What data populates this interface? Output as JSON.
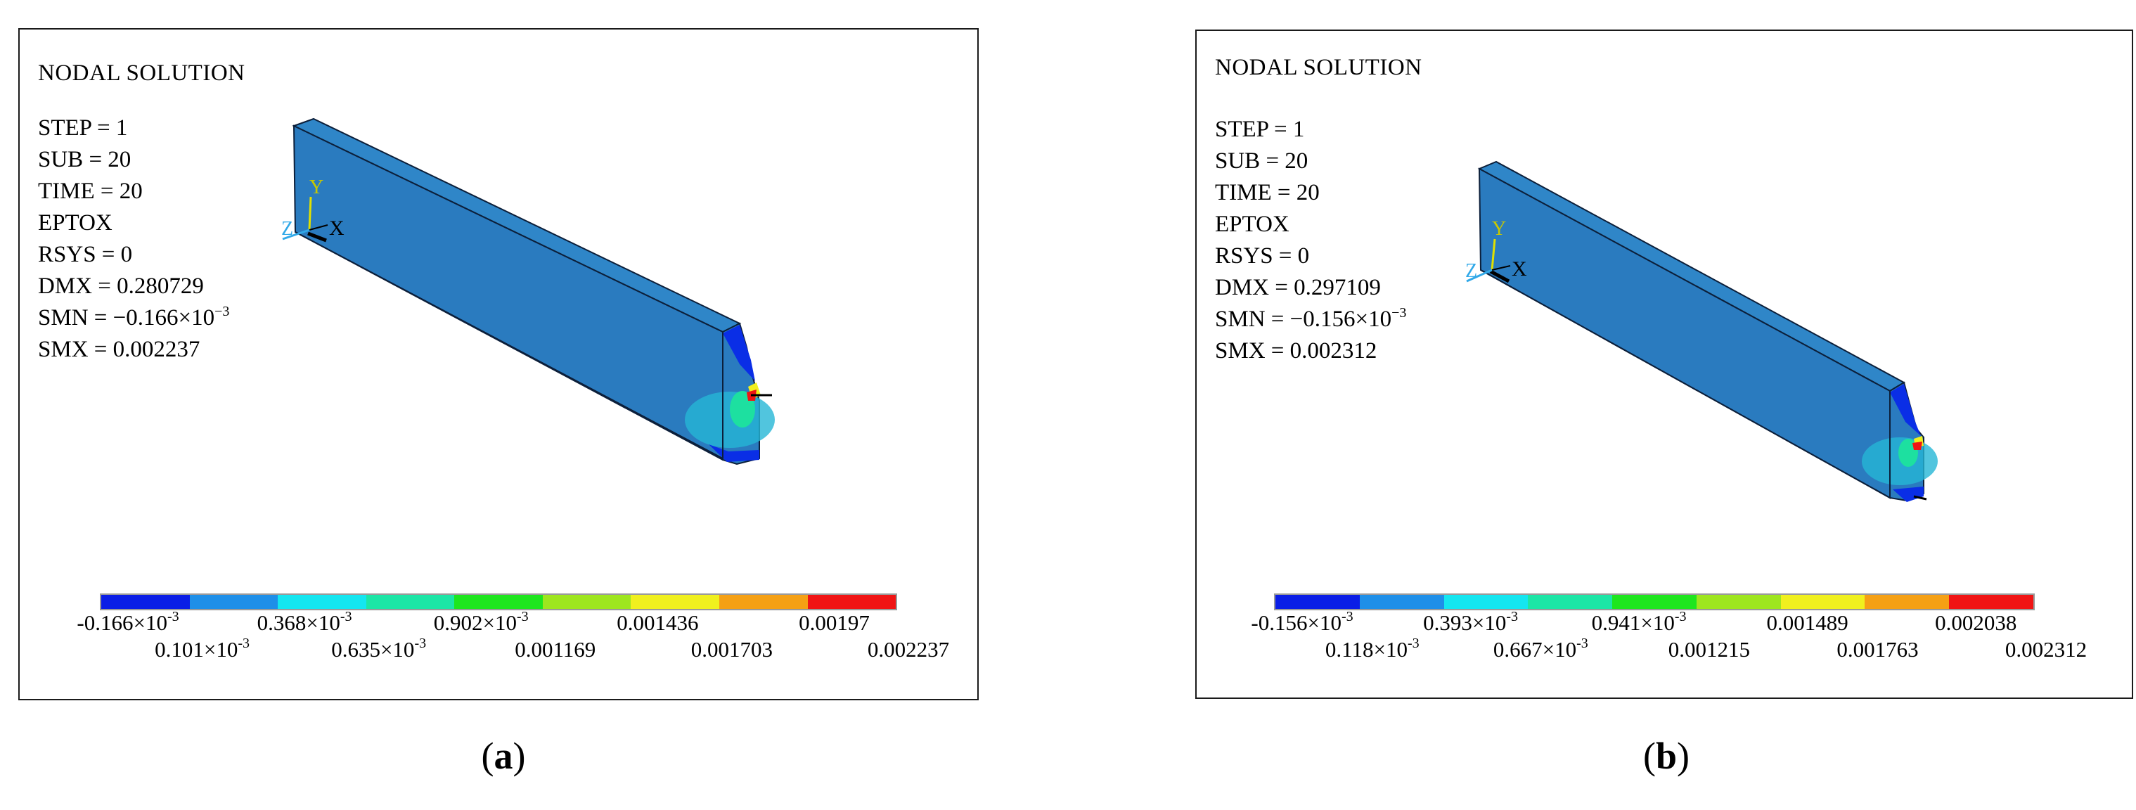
{
  "colors": {
    "body": "#2a7bbf",
    "body_edge": "#16375e",
    "legend": [
      "#0a1ee6",
      "#1e8fe8",
      "#14e6f0",
      "#1ce6a6",
      "#1ee61e",
      "#9ee61e",
      "#f0f01e",
      "#f5a014",
      "#f01414"
    ]
  },
  "panels": [
    {
      "id": "a",
      "title": "NODAL SOLUTION",
      "info": {
        "step": "STEP = 1",
        "sub": "SUB = 20",
        "time": "TIME = 20",
        "eptox": "EPTOX",
        "rsys": "RSYS = 0",
        "dmx": "DMX = 0.280729",
        "smn_prefix": "SMN = −0.166×10",
        "smn_exp": "−3",
        "smx": "SMX = 0.002237"
      },
      "axis_labels": {
        "y": "Y",
        "x": "X",
        "z": "Z"
      },
      "legend_top": [
        {
          "m": "-0.166×10",
          "e": "-3"
        },
        {
          "m": "0.368×10",
          "e": "-3"
        },
        {
          "m": "0.902×10",
          "e": "-3"
        },
        {
          "m": "0.001436",
          "e": ""
        },
        {
          "m": "0.00197",
          "e": ""
        }
      ],
      "legend_bottom": [
        {
          "m": "0.101×10",
          "e": "-3"
        },
        {
          "m": "0.635×10",
          "e": "-3"
        },
        {
          "m": "0.001169",
          "e": ""
        },
        {
          "m": "0.001703",
          "e": ""
        },
        {
          "m": "0.002237",
          "e": ""
        }
      ],
      "label": "a"
    },
    {
      "id": "b",
      "title": "NODAL SOLUTION",
      "info": {
        "step": "STEP = 1",
        "sub": "SUB = 20",
        "time": "TIME = 20",
        "eptox": "EPTOX",
        "rsys": "RSYS = 0",
        "dmx": "DMX = 0.297109",
        "smn_prefix": "SMN = −0.156×10",
        "smn_exp": "−3",
        "smx": "SMX = 0.002312"
      },
      "axis_labels": {
        "y": "Y",
        "x": "X",
        "z": "Z"
      },
      "legend_top": [
        {
          "m": "-0.156×10",
          "e": "-3"
        },
        {
          "m": "0.393×10",
          "e": "-3"
        },
        {
          "m": "0.941×10",
          "e": "-3"
        },
        {
          "m": "0.001489",
          "e": ""
        },
        {
          "m": "0.002038",
          "e": ""
        }
      ],
      "legend_bottom": [
        {
          "m": "0.118×10",
          "e": "-3"
        },
        {
          "m": "0.667×10",
          "e": "-3"
        },
        {
          "m": "0.001215",
          "e": ""
        },
        {
          "m": "0.001763",
          "e": ""
        },
        {
          "m": "0.002312",
          "e": ""
        }
      ],
      "label": "b"
    }
  ]
}
